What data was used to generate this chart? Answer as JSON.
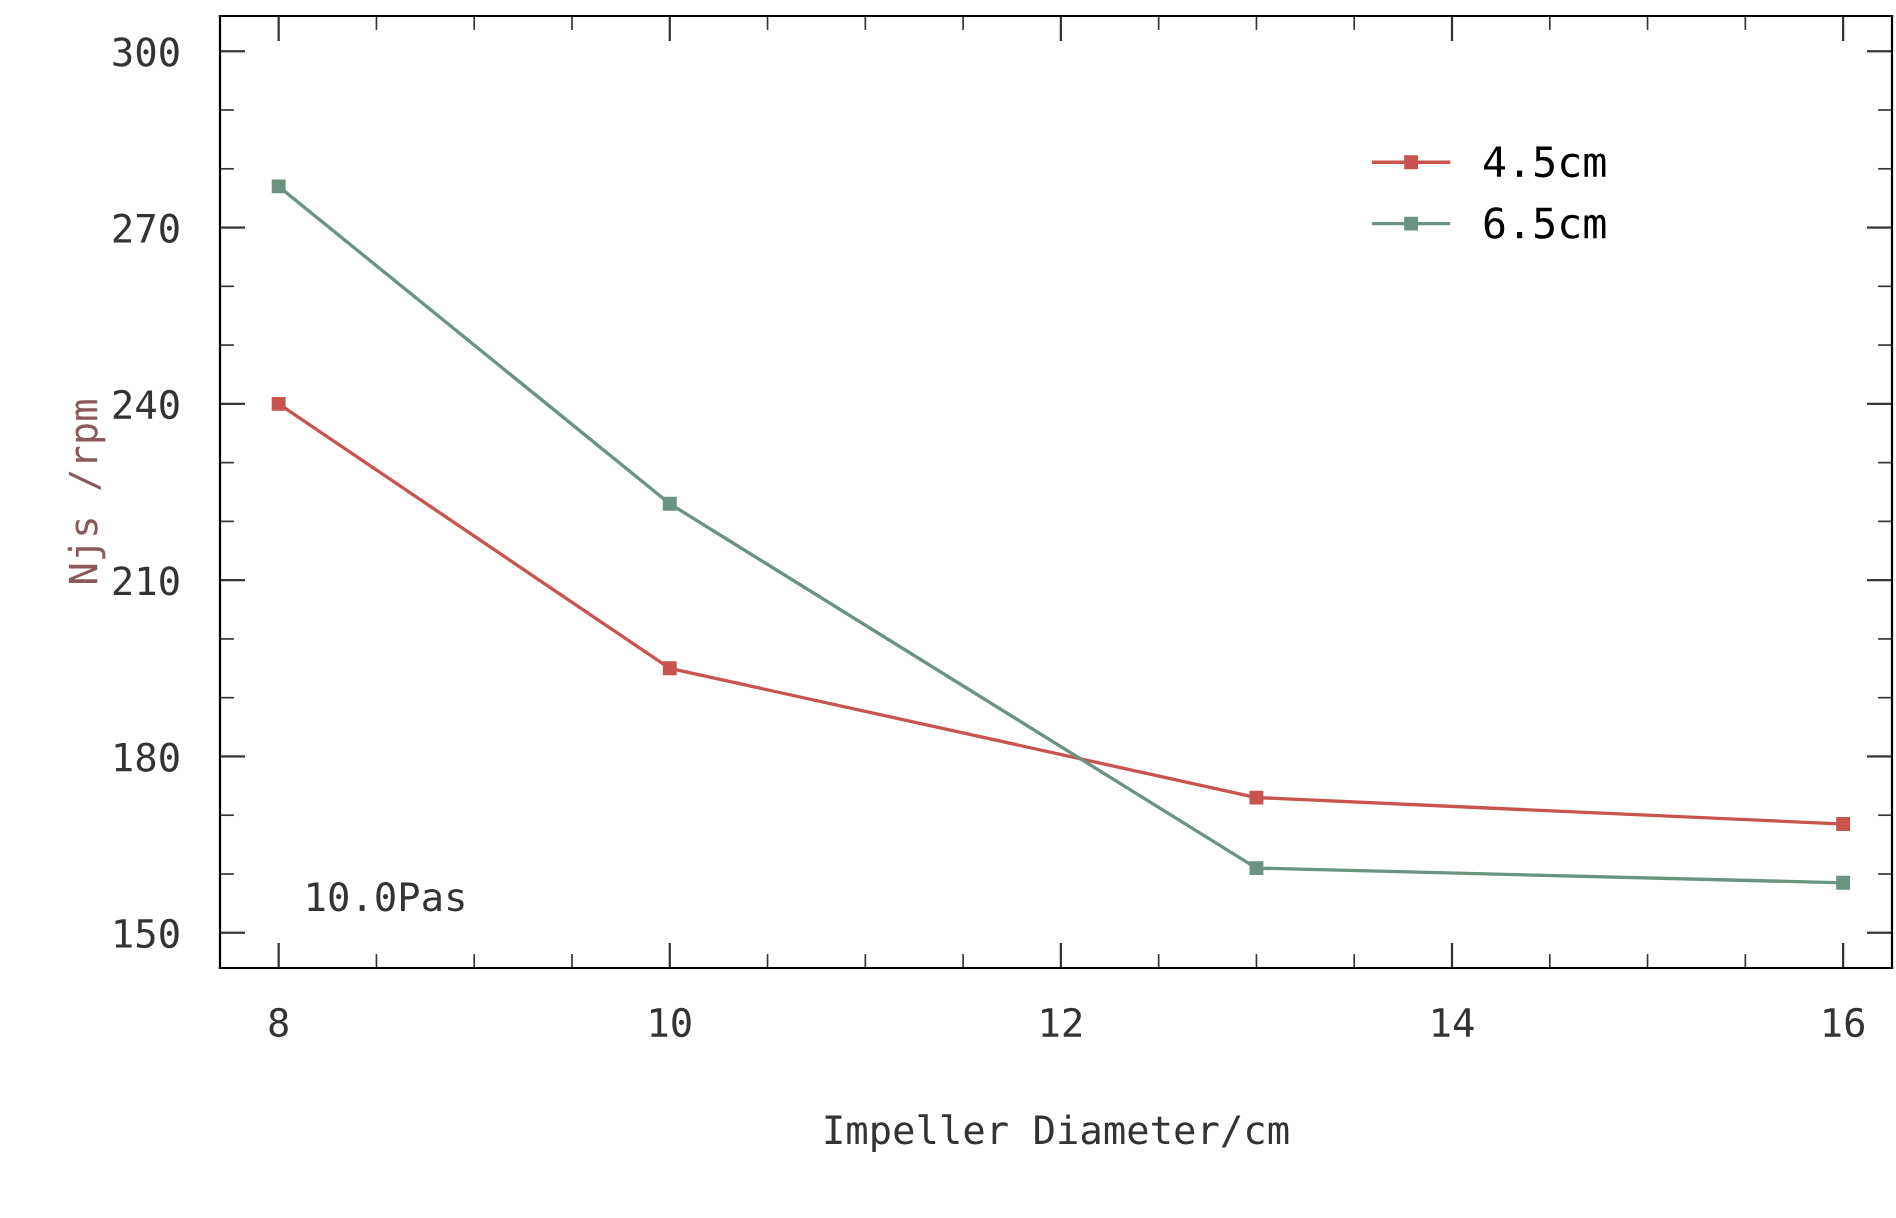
{
  "chart_data": {
    "type": "line",
    "xlabel": "Impeller Diameter/cm",
    "ylabel": "Njs /rpm",
    "x": [
      8,
      10,
      13,
      16
    ],
    "series": [
      {
        "name": "4.5cm",
        "color": "#c9534e",
        "values": [
          240,
          195,
          173,
          168.5
        ]
      },
      {
        "name": "6.5cm",
        "color": "#6a9480",
        "values": [
          277,
          223,
          161,
          158.5
        ]
      }
    ],
    "xlim": [
      7.7,
      16.25
    ],
    "xticks": [
      8,
      10,
      12,
      14,
      16
    ],
    "ylim": [
      144,
      306
    ],
    "yticks": [
      150,
      180,
      210,
      240,
      270,
      300
    ],
    "annotations": [
      "10.0Pas"
    ],
    "legend": "top right",
    "marker": "square",
    "line_style": "solid",
    "grid": false
  }
}
